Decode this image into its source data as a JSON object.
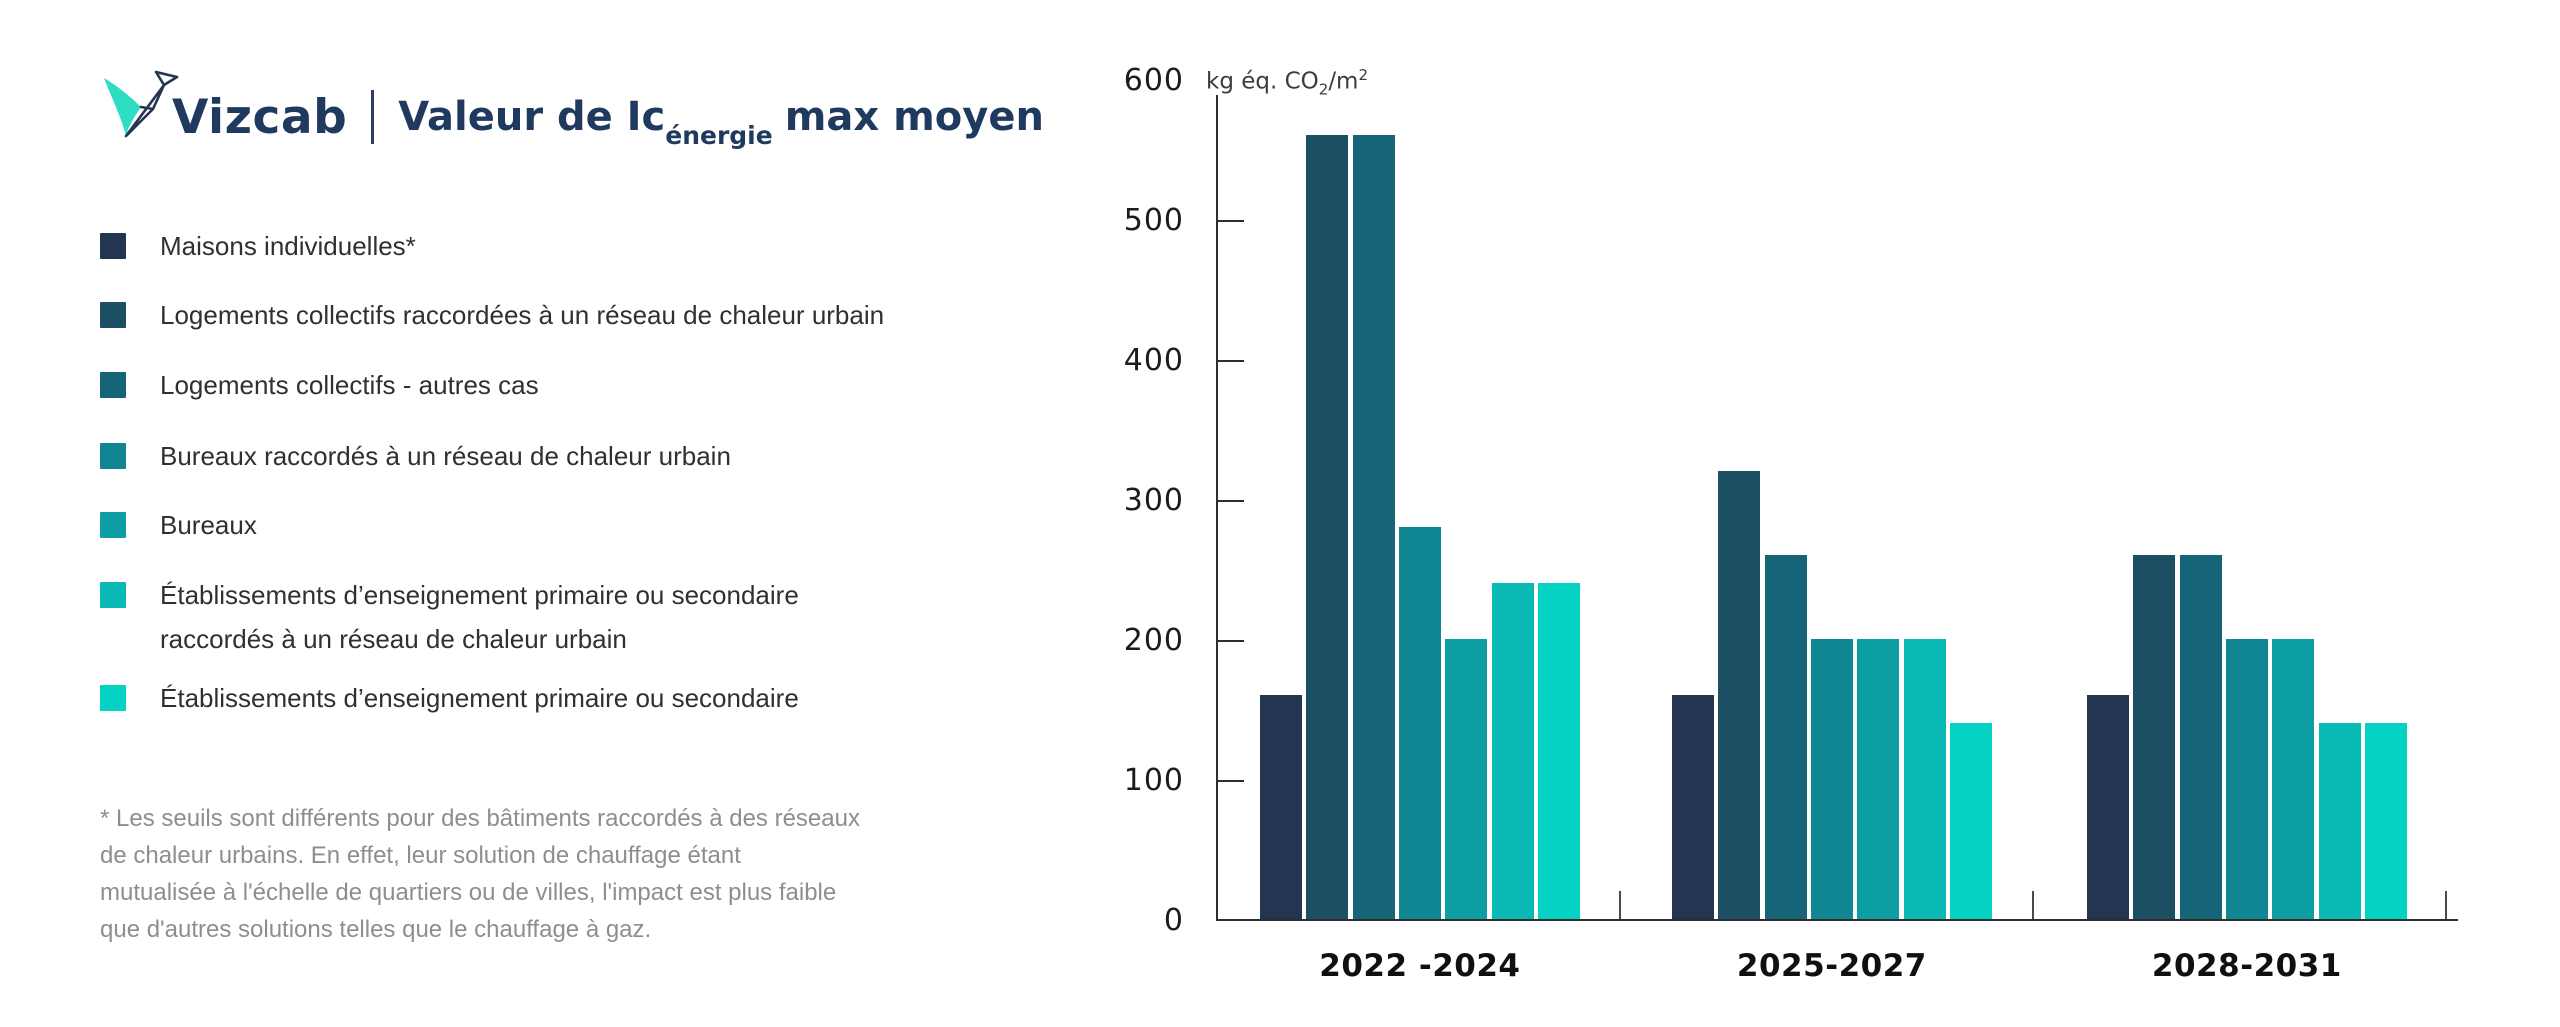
{
  "header": {
    "brand": "Vizcab",
    "title_main": "Valeur de Ic",
    "title_sub": "énergie",
    "title_suffix": "max moyen"
  },
  "legend": {
    "items": [
      {
        "label": "Maisons individuelles*",
        "color": "#243551"
      },
      {
        "label": "Logements collectifs raccordées à un réseau de chaleur urbain",
        "color": "#1d4f64"
      },
      {
        "label": "Logements collectifs - autres cas",
        "color": "#166478"
      },
      {
        "label": "Bureaux raccordés à un réseau de chaleur urbain",
        "color": "#0f8691"
      },
      {
        "label": "Bureaux",
        "color": "#0c9ea3"
      },
      {
        "label": "Établissements d’enseignement primaire ou secondaire",
        "label2": "raccordés à un réseau de chaleur urbain",
        "color": "#08b9b4"
      },
      {
        "label": "Établissements d’enseignement primaire ou secondaire",
        "color": "#04d3c4"
      }
    ]
  },
  "footnote": {
    "lines": [
      "* Les seuils sont différents pour des bâtiments raccordés à des réseaux",
      "de chaleur urbains. En effet, leur solution de chauffage étant",
      "mutualisée à l'échelle de quartiers ou de villes, l'impact est plus faible",
      "que d'autres solutions telles que le chauffage à gaz."
    ]
  },
  "axis": {
    "unit_prefix": "kg éq. CO",
    "unit_sub": "2",
    "unit_mid": "/m",
    "unit_sup": "2"
  },
  "colors": {
    "title_navy": "#1f3a5e",
    "axis_line": "#2d2d2d",
    "logo_teal": "#2fdec2",
    "logo_navy": "#233550"
  },
  "chart_data": {
    "type": "bar",
    "title": "Valeur de Icénergie max moyen",
    "xlabel": "",
    "ylabel": "kg éq. CO₂/m²",
    "ylim": [
      0,
      600
    ],
    "y_ticks": [
      600,
      500,
      400,
      300,
      200,
      100,
      0
    ],
    "grid": false,
    "legend_position": "left",
    "categories": [
      "2022 -2024",
      "2025-2027",
      "2028-2031"
    ],
    "series": [
      {
        "name": "Maisons individuelles*",
        "color": "#243551",
        "values": [
          160,
          160,
          160
        ]
      },
      {
        "name": "Logements collectifs raccordées à un réseau de chaleur urbain",
        "color": "#1d4f64",
        "values": [
          560,
          320,
          260
        ]
      },
      {
        "name": "Logements collectifs - autres cas",
        "color": "#166478",
        "values": [
          560,
          260,
          260
        ]
      },
      {
        "name": "Bureaux raccordés à un réseau de chaleur urbain",
        "color": "#0f8691",
        "values": [
          280,
          200,
          200
        ]
      },
      {
        "name": "Bureaux",
        "color": "#0c9ea3",
        "values": [
          200,
          200,
          200
        ]
      },
      {
        "name": "Établissements d’enseignement primaire ou secondaire raccordés à un réseau de chaleur urbain",
        "color": "#08b9b4",
        "values": [
          240,
          200,
          140
        ]
      },
      {
        "name": "Établissements d’enseignement primaire ou secondaire",
        "color": "#04d3c4",
        "values": [
          240,
          140,
          140
        ]
      }
    ]
  }
}
